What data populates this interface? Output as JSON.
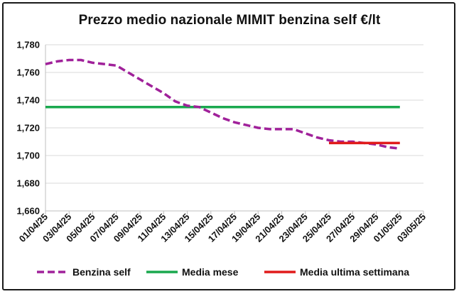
{
  "chart_data": {
    "type": "line",
    "title": "Prezzo medio nazionale MIMIT benzina self €/lt",
    "xlabel": "",
    "ylabel": "",
    "ylim": [
      1.66,
      1.78
    ],
    "yticks": [
      "1,660",
      "1,680",
      "1,700",
      "1,720",
      "1,740",
      "1,760",
      "1,780"
    ],
    "xticks": [
      "01/04/25",
      "03/04/25",
      "05/04/25",
      "07/04/25",
      "09/04/25",
      "11/04/25",
      "13/04/25",
      "15/04/25",
      "17/04/25",
      "19/04/25",
      "21/04/25",
      "23/04/25",
      "25/04/25",
      "27/04/25",
      "29/04/25",
      "01/05/25",
      "03/05/25"
    ],
    "grid": "horizontal",
    "legend_position": "bottom",
    "series": [
      {
        "name": "Benzina self",
        "style": "dashed",
        "color": "#a0219a",
        "x": [
          "01/04/25",
          "02/04/25",
          "03/04/25",
          "04/04/25",
          "05/04/25",
          "06/04/25",
          "07/04/25",
          "08/04/25",
          "09/04/25",
          "10/04/25",
          "11/04/25",
          "12/04/25",
          "13/04/25",
          "14/04/25",
          "15/04/25",
          "16/04/25",
          "17/04/25",
          "18/04/25",
          "19/04/25",
          "20/04/25",
          "21/04/25",
          "22/04/25",
          "23/04/25",
          "24/04/25",
          "25/04/25",
          "26/04/25",
          "27/04/25",
          "28/04/25",
          "29/04/25",
          "30/04/25",
          "01/05/25"
        ],
        "values": [
          1.766,
          1.768,
          1.769,
          1.769,
          1.767,
          1.766,
          1.765,
          1.76,
          1.755,
          1.75,
          1.745,
          1.739,
          1.736,
          1.735,
          1.731,
          1.727,
          1.724,
          1.722,
          1.72,
          1.719,
          1.719,
          1.719,
          1.716,
          1.713,
          1.711,
          1.71,
          1.71,
          1.709,
          1.708,
          1.706,
          1.705
        ]
      },
      {
        "name": "Media mese",
        "style": "solid",
        "color": "#1aa84e",
        "x": [
          "01/04/25",
          "01/05/25"
        ],
        "values": [
          1.735,
          1.735
        ]
      },
      {
        "name": "Media ultima settimana",
        "style": "solid",
        "color": "#e01b1b",
        "x": [
          "25/04/25",
          "01/05/25"
        ],
        "values": [
          1.709,
          1.709
        ]
      }
    ]
  }
}
